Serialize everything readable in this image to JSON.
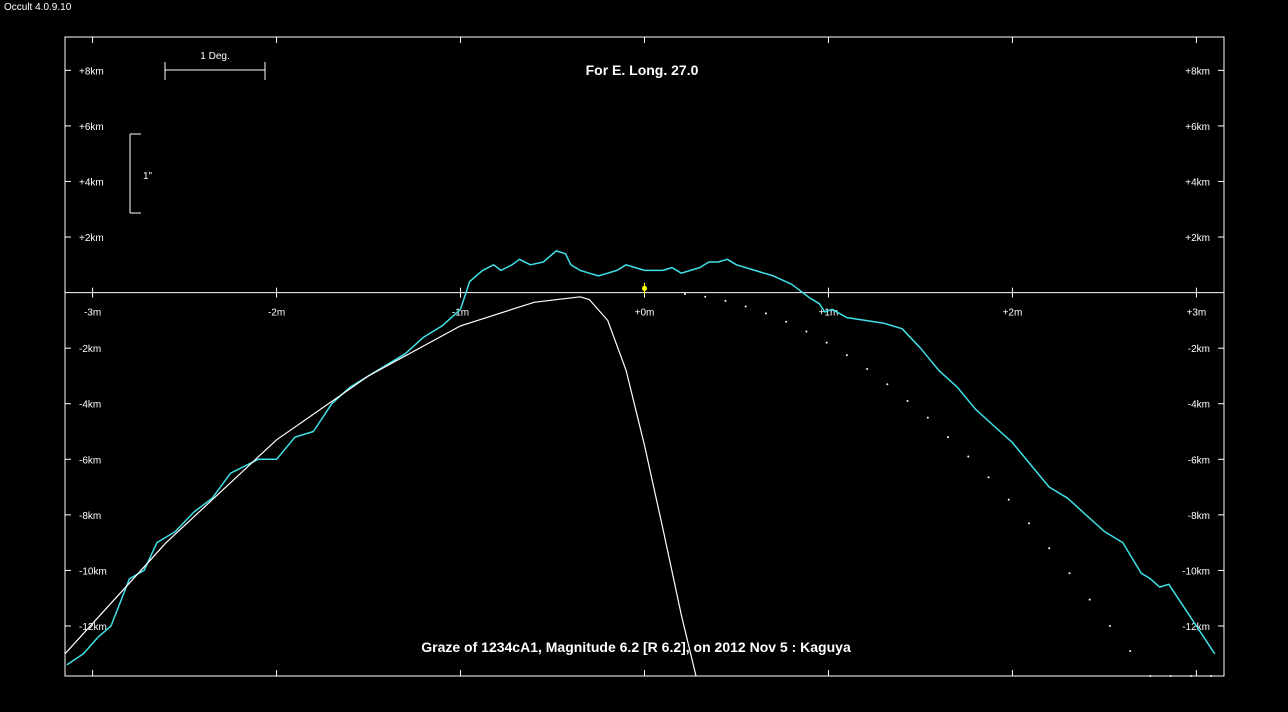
{
  "app": {
    "title": "Occult 4.0.9.10"
  },
  "chart_data": {
    "type": "line",
    "title": "For E. Long. 27.0",
    "subtitle": "Graze of  1234cA1,  Magnitude 6.2 [R 6.2],  on 2012 Nov  5  :  Kaguya",
    "xlabel": "",
    "ylabel": "",
    "xlim": [
      -3.15,
      3.15
    ],
    "ylim": [
      -13.8,
      9.2
    ],
    "x_ticks": [
      {
        "v": -3,
        "label": "-3m"
      },
      {
        "v": -2,
        "label": "-2m"
      },
      {
        "v": -1,
        "label": "-1m"
      },
      {
        "v": 0,
        "label": "+0m"
      },
      {
        "v": 1,
        "label": "+1m"
      },
      {
        "v": 2,
        "label": "+2m"
      },
      {
        "v": 3,
        "label": "+3m"
      }
    ],
    "y_ticks": [
      {
        "v": 8,
        "label": "+8km"
      },
      {
        "v": 6,
        "label": "+6km"
      },
      {
        "v": 4,
        "label": "+4km"
      },
      {
        "v": 2,
        "label": "+2km"
      },
      {
        "v": -2,
        "label": "-2km"
      },
      {
        "v": -4,
        "label": "-4km"
      },
      {
        "v": -6,
        "label": "-6km"
      },
      {
        "v": -8,
        "label": "-8km"
      },
      {
        "v": -10,
        "label": "-10km"
      },
      {
        "v": -12,
        "label": "-12km"
      }
    ],
    "scale_bars": {
      "degree_label": "1 Deg.",
      "arcsec_label": "1\""
    },
    "colors": {
      "profile": "#40e0e8",
      "limit_line": "#ffffff",
      "star": "#ffff00",
      "axes": "#ffffff"
    },
    "series": [
      {
        "role": "limb-profile",
        "x": [
          -3.14,
          -3.05,
          -2.97,
          -2.9,
          -2.8,
          -2.72,
          -2.65,
          -2.55,
          -2.45,
          -2.35,
          -2.25,
          -2.1,
          -2.0,
          -1.9,
          -1.8,
          -1.7,
          -1.6,
          -1.5,
          -1.4,
          -1.3,
          -1.2,
          -1.1,
          -1.0,
          -0.95,
          -0.88,
          -0.82,
          -0.78,
          -0.72,
          -0.68,
          -0.62,
          -0.55,
          -0.48,
          -0.43,
          -0.4,
          -0.35,
          -0.3,
          -0.25,
          -0.2,
          -0.15,
          -0.1,
          -0.05,
          0.0,
          0.05,
          0.1,
          0.15,
          0.2,
          0.25,
          0.3,
          0.35,
          0.4,
          0.45,
          0.5,
          0.55,
          0.6,
          0.7,
          0.8,
          0.9,
          0.95,
          0.98,
          1.02,
          1.1,
          1.2,
          1.3,
          1.4,
          1.5,
          1.55,
          1.6,
          1.7,
          1.8,
          1.9,
          2.0,
          2.1,
          2.2,
          2.3,
          2.4,
          2.5,
          2.6,
          2.7,
          2.75,
          2.8,
          2.85,
          2.9,
          2.95,
          3.0,
          3.05,
          3.1
        ],
        "y": [
          -13.4,
          -13.0,
          -12.4,
          -12.0,
          -10.3,
          -10.0,
          -9.0,
          -8.6,
          -7.9,
          -7.4,
          -6.5,
          -6.0,
          -6.0,
          -5.2,
          -5.0,
          -4.0,
          -3.4,
          -3.0,
          -2.6,
          -2.2,
          -1.6,
          -1.2,
          -0.6,
          0.4,
          0.8,
          1.0,
          0.8,
          1.0,
          1.2,
          1.0,
          1.1,
          1.5,
          1.4,
          1.0,
          0.8,
          0.7,
          0.6,
          0.7,
          0.8,
          1.0,
          0.9,
          0.8,
          0.8,
          0.8,
          0.9,
          0.7,
          0.8,
          0.9,
          1.1,
          1.1,
          1.2,
          1.0,
          0.9,
          0.8,
          0.6,
          0.3,
          -0.2,
          -0.4,
          -0.7,
          -0.6,
          -0.9,
          -1.0,
          -1.1,
          -1.3,
          -2.0,
          -2.4,
          -2.8,
          -3.4,
          -4.2,
          -4.8,
          -5.4,
          -6.2,
          -7.0,
          -7.4,
          -8.0,
          -8.6,
          -9.0,
          -10.1,
          -10.3,
          -10.6,
          -10.5,
          -11.0,
          -11.5,
          -12.0,
          -12.5,
          -13.0
        ]
      },
      {
        "role": "northern-limit",
        "x": [
          -3.15,
          -2.6,
          -2.0,
          -1.5,
          -1.0,
          -0.6,
          -0.35,
          -0.3,
          -0.2,
          -0.1,
          0.0,
          0.1,
          0.2,
          0.28
        ],
        "y": [
          -13.0,
          -9.0,
          -5.3,
          -3.0,
          -1.2,
          -0.35,
          -0.15,
          -0.25,
          -1.0,
          -2.8,
          -5.5,
          -8.5,
          -11.6,
          -13.8
        ]
      },
      {
        "role": "southern-limit-dots",
        "x": [
          0.22,
          0.33,
          0.44,
          0.55,
          0.66,
          0.77,
          0.88,
          0.99,
          1.1,
          1.21,
          1.32,
          1.43,
          1.54,
          1.65,
          1.76,
          1.87,
          1.98,
          2.09,
          2.2,
          2.31,
          2.42,
          2.53,
          2.64,
          2.75,
          2.86,
          2.97,
          3.08
        ],
        "y": [
          -0.05,
          -0.15,
          -0.3,
          -0.5,
          -0.75,
          -1.05,
          -1.4,
          -1.8,
          -2.25,
          -2.75,
          -3.3,
          -3.9,
          -4.5,
          -5.2,
          -5.9,
          -6.65,
          -7.45,
          -8.3,
          -9.2,
          -10.1,
          -11.05,
          -12.0,
          -12.9,
          -13.8,
          -13.8,
          -13.8,
          -13.8
        ]
      }
    ],
    "star_marker": {
      "x": 0.0,
      "y": 0.15
    }
  }
}
